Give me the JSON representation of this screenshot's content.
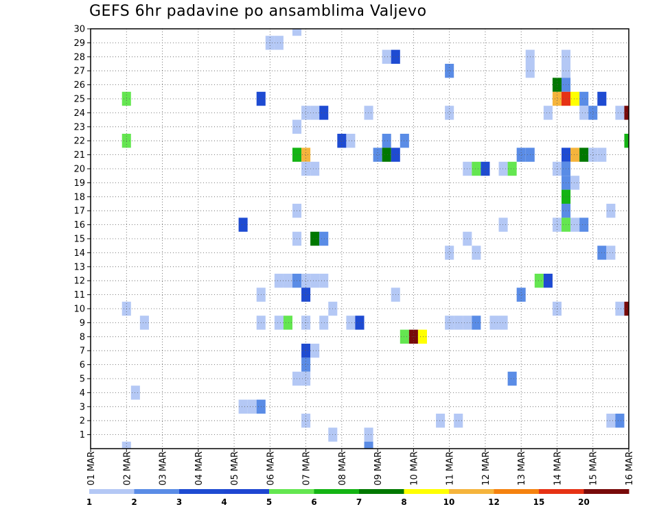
{
  "chart_data": {
    "type": "heatmap",
    "title": "GEFS 6hr padavine po ansamblima Valjevo",
    "x_tick_labels": [
      "01 MAR",
      "02 MAR",
      "03 MAR",
      "04 MAR",
      "05 MAR",
      "06 MAR",
      "07 MAR",
      "08 MAR",
      "09 MAR",
      "10 MAR",
      "11 MAR",
      "12 MAR",
      "13 MAR",
      "14 MAR",
      "15 MAR",
      "16 MAR"
    ],
    "y_tick_labels": [
      1,
      2,
      3,
      4,
      5,
      6,
      7,
      8,
      9,
      10,
      11,
      12,
      13,
      14,
      15,
      16,
      17,
      18,
      19,
      20,
      21,
      22,
      23,
      24,
      25,
      26,
      27,
      28,
      29,
      30
    ],
    "ylim": [
      0,
      30
    ],
    "x_steps": 60,
    "grid": true,
    "legend_labels": [
      "1",
      "2",
      "3",
      "4",
      "5",
      "6",
      "7",
      "8",
      "10",
      "12",
      "15",
      "20"
    ],
    "legend_colors": [
      "#b4c8f5",
      "#5a8ce6",
      "#1e4bd2",
      "#1e46d2",
      "#64e650",
      "#14b414",
      "#007800",
      "#ffff00",
      "#f5b43c",
      "#f5820f",
      "#e63214",
      "#780a0a"
    ],
    "cells": [
      {
        "step": 23,
        "member": 30,
        "class": 1
      },
      {
        "step": 20,
        "member": 29,
        "class": 1
      },
      {
        "step": 21,
        "member": 29,
        "class": 1
      },
      {
        "step": 33,
        "member": 28,
        "class": 1
      },
      {
        "step": 34,
        "member": 28,
        "class": 3
      },
      {
        "step": 49,
        "member": 28,
        "class": 1
      },
      {
        "step": 53,
        "member": 28,
        "class": 1
      },
      {
        "step": 40,
        "member": 27,
        "class": 2
      },
      {
        "step": 49,
        "member": 27,
        "class": 1
      },
      {
        "step": 53,
        "member": 27,
        "class": 1
      },
      {
        "step": 52,
        "member": 26,
        "class": 7
      },
      {
        "step": 53,
        "member": 26,
        "class": 2
      },
      {
        "step": 4,
        "member": 25,
        "class": 5
      },
      {
        "step": 19,
        "member": 25,
        "class": 3
      },
      {
        "step": 52,
        "member": 25,
        "class": 9
      },
      {
        "step": 53,
        "member": 25,
        "class": 11
      },
      {
        "step": 54,
        "member": 25,
        "class": 8
      },
      {
        "step": 55,
        "member": 25,
        "class": 2
      },
      {
        "step": 57,
        "member": 25,
        "class": 3
      },
      {
        "step": 24,
        "member": 24,
        "class": 1
      },
      {
        "step": 25,
        "member": 24,
        "class": 1
      },
      {
        "step": 26,
        "member": 24,
        "class": 3
      },
      {
        "step": 31,
        "member": 24,
        "class": 1
      },
      {
        "step": 40,
        "member": 24,
        "class": 1
      },
      {
        "step": 51,
        "member": 24,
        "class": 1
      },
      {
        "step": 55,
        "member": 24,
        "class": 1
      },
      {
        "step": 56,
        "member": 24,
        "class": 2
      },
      {
        "step": 59,
        "member": 24,
        "class": 1
      },
      {
        "step": 60,
        "member": 24,
        "class": 12
      },
      {
        "step": 23,
        "member": 23,
        "class": 1
      },
      {
        "step": 4,
        "member": 22,
        "class": 5
      },
      {
        "step": 28,
        "member": 22,
        "class": 3
      },
      {
        "step": 29,
        "member": 22,
        "class": 1
      },
      {
        "step": 33,
        "member": 22,
        "class": 2
      },
      {
        "step": 35,
        "member": 22,
        "class": 2
      },
      {
        "step": 60,
        "member": 22,
        "class": 6
      },
      {
        "step": 23,
        "member": 21,
        "class": 6
      },
      {
        "step": 24,
        "member": 21,
        "class": 9
      },
      {
        "step": 32,
        "member": 21,
        "class": 2
      },
      {
        "step": 33,
        "member": 21,
        "class": 7
      },
      {
        "step": 34,
        "member": 21,
        "class": 3
      },
      {
        "step": 48,
        "member": 21,
        "class": 2
      },
      {
        "step": 49,
        "member": 21,
        "class": 2
      },
      {
        "step": 53,
        "member": 21,
        "class": 3
      },
      {
        "step": 54,
        "member": 21,
        "class": 9
      },
      {
        "step": 55,
        "member": 21,
        "class": 7
      },
      {
        "step": 56,
        "member": 21,
        "class": 1
      },
      {
        "step": 57,
        "member": 21,
        "class": 1
      },
      {
        "step": 24,
        "member": 20,
        "class": 1
      },
      {
        "step": 25,
        "member": 20,
        "class": 1
      },
      {
        "step": 42,
        "member": 20,
        "class": 1
      },
      {
        "step": 43,
        "member": 20,
        "class": 5
      },
      {
        "step": 44,
        "member": 20,
        "class": 3
      },
      {
        "step": 46,
        "member": 20,
        "class": 1
      },
      {
        "step": 47,
        "member": 20,
        "class": 5
      },
      {
        "step": 52,
        "member": 20,
        "class": 1
      },
      {
        "step": 53,
        "member": 20,
        "class": 2
      },
      {
        "step": 53,
        "member": 19,
        "class": 2
      },
      {
        "step": 54,
        "member": 19,
        "class": 1
      },
      {
        "step": 53,
        "member": 18,
        "class": 6
      },
      {
        "step": 23,
        "member": 17,
        "class": 1
      },
      {
        "step": 53,
        "member": 17,
        "class": 2
      },
      {
        "step": 58,
        "member": 17,
        "class": 1
      },
      {
        "step": 17,
        "member": 16,
        "class": 3
      },
      {
        "step": 46,
        "member": 16,
        "class": 1
      },
      {
        "step": 52,
        "member": 16,
        "class": 1
      },
      {
        "step": 53,
        "member": 16,
        "class": 5
      },
      {
        "step": 54,
        "member": 16,
        "class": 1
      },
      {
        "step": 55,
        "member": 16,
        "class": 2
      },
      {
        "step": 23,
        "member": 15,
        "class": 1
      },
      {
        "step": 25,
        "member": 15,
        "class": 7
      },
      {
        "step": 26,
        "member": 15,
        "class": 2
      },
      {
        "step": 42,
        "member": 15,
        "class": 1
      },
      {
        "step": 40,
        "member": 14,
        "class": 1
      },
      {
        "step": 43,
        "member": 14,
        "class": 1
      },
      {
        "step": 57,
        "member": 14,
        "class": 2
      },
      {
        "step": 58,
        "member": 14,
        "class": 1
      },
      {
        "step": 21,
        "member": 12,
        "class": 1
      },
      {
        "step": 22,
        "member": 12,
        "class": 1
      },
      {
        "step": 23,
        "member": 12,
        "class": 2
      },
      {
        "step": 24,
        "member": 12,
        "class": 1
      },
      {
        "step": 25,
        "member": 12,
        "class": 1
      },
      {
        "step": 26,
        "member": 12,
        "class": 1
      },
      {
        "step": 50,
        "member": 12,
        "class": 5
      },
      {
        "step": 51,
        "member": 12,
        "class": 3
      },
      {
        "step": 19,
        "member": 11,
        "class": 1
      },
      {
        "step": 24,
        "member": 11,
        "class": 3
      },
      {
        "step": 34,
        "member": 11,
        "class": 1
      },
      {
        "step": 48,
        "member": 11,
        "class": 2
      },
      {
        "step": 4,
        "member": 10,
        "class": 1
      },
      {
        "step": 27,
        "member": 10,
        "class": 1
      },
      {
        "step": 52,
        "member": 10,
        "class": 1
      },
      {
        "step": 59,
        "member": 10,
        "class": 1
      },
      {
        "step": 60,
        "member": 10,
        "class": 12
      },
      {
        "step": 6,
        "member": 9,
        "class": 1
      },
      {
        "step": 19,
        "member": 9,
        "class": 1
      },
      {
        "step": 21,
        "member": 9,
        "class": 1
      },
      {
        "step": 22,
        "member": 9,
        "class": 5
      },
      {
        "step": 24,
        "member": 9,
        "class": 1
      },
      {
        "step": 26,
        "member": 9,
        "class": 1
      },
      {
        "step": 29,
        "member": 9,
        "class": 1
      },
      {
        "step": 30,
        "member": 9,
        "class": 3
      },
      {
        "step": 40,
        "member": 9,
        "class": 1
      },
      {
        "step": 41,
        "member": 9,
        "class": 1
      },
      {
        "step": 42,
        "member": 9,
        "class": 1
      },
      {
        "step": 43,
        "member": 9,
        "class": 2
      },
      {
        "step": 45,
        "member": 9,
        "class": 1
      },
      {
        "step": 46,
        "member": 9,
        "class": 1
      },
      {
        "step": 35,
        "member": 8,
        "class": 5
      },
      {
        "step": 36,
        "member": 8,
        "class": 12
      },
      {
        "step": 37,
        "member": 8,
        "class": 8
      },
      {
        "step": 24,
        "member": 7,
        "class": 3
      },
      {
        "step": 25,
        "member": 7,
        "class": 1
      },
      {
        "step": 24,
        "member": 6,
        "class": 2
      },
      {
        "step": 23,
        "member": 5,
        "class": 1
      },
      {
        "step": 24,
        "member": 5,
        "class": 1
      },
      {
        "step": 47,
        "member": 5,
        "class": 2
      },
      {
        "step": 5,
        "member": 4,
        "class": 1
      },
      {
        "step": 17,
        "member": 3,
        "class": 1
      },
      {
        "step": 18,
        "member": 3,
        "class": 1
      },
      {
        "step": 19,
        "member": 3,
        "class": 2
      },
      {
        "step": 24,
        "member": 2,
        "class": 1
      },
      {
        "step": 39,
        "member": 2,
        "class": 1
      },
      {
        "step": 41,
        "member": 2,
        "class": 1
      },
      {
        "step": 58,
        "member": 2,
        "class": 1
      },
      {
        "step": 59,
        "member": 2,
        "class": 2
      },
      {
        "step": 27,
        "member": 1,
        "class": 1
      },
      {
        "step": 31,
        "member": 1,
        "class": 1
      },
      {
        "step": 4,
        "member": 0,
        "class": 1
      },
      {
        "step": 31,
        "member": 0,
        "class": 2
      }
    ]
  }
}
